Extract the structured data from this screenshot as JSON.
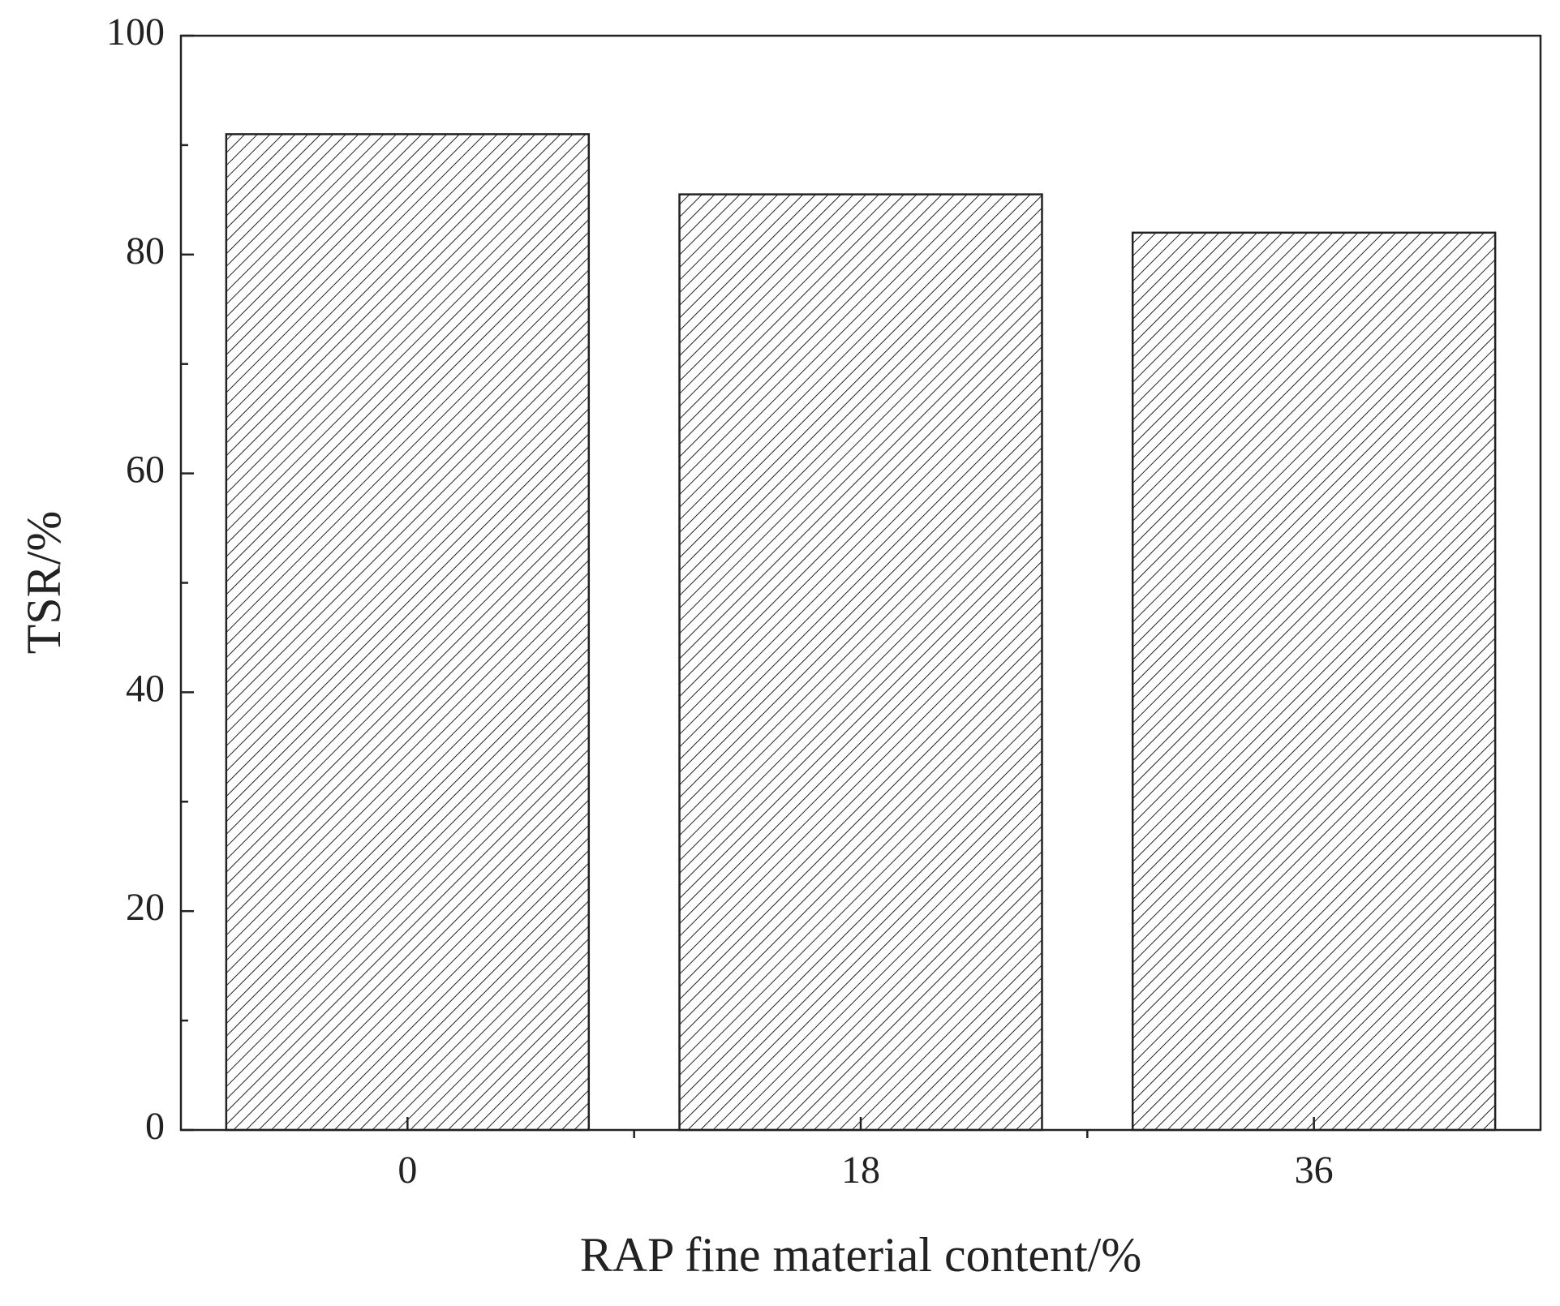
{
  "chart_data": {
    "type": "bar",
    "x_label": "RAP fine material content/%",
    "y_label": "TSR/%",
    "categories": [
      "0",
      "18",
      "36"
    ],
    "values": [
      91,
      85.5,
      82
    ],
    "color": "#222222",
    "pattern": "hatch",
    "ylim": [
      0,
      100
    ],
    "yticks": [
      0,
      20,
      40,
      60,
      80,
      100
    ],
    "grid": false
  }
}
